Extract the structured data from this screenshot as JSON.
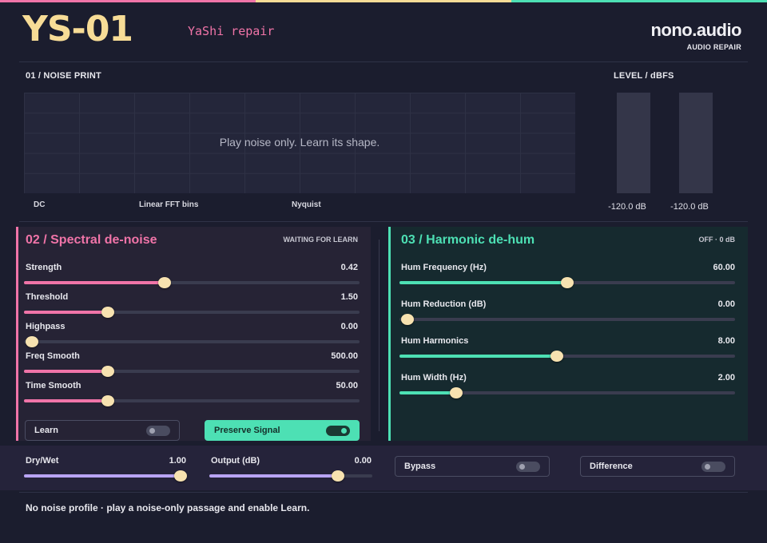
{
  "colors": {
    "background": "#1b1d2e",
    "pink": "#f074a8",
    "yellow": "#f7dc96",
    "teal": "#4de0b4",
    "lavender": "#b9a4f4",
    "thumb": "#f7e2b0"
  },
  "header": {
    "logo": "YS-01",
    "subtitle": "YaShi repair",
    "brand": "nono.audio",
    "brand_sub": "AUDIO REPAIR"
  },
  "noise_print": {
    "label": "01 / NOISE PRINT",
    "message": "Play noise only. Learn its shape.",
    "axis": [
      "DC",
      "Linear FFT bins",
      "Nyquist"
    ]
  },
  "level": {
    "label": "LEVEL / dBFS",
    "left": "-120.0 dB",
    "right": "-120.0 dB"
  },
  "denoise": {
    "title": "02 / Spectral de-noise",
    "status": "WAITING FOR LEARN",
    "params": [
      {
        "label": "Strength",
        "value": "0.42",
        "fraction": 0.42
      },
      {
        "label": "Threshold",
        "value": "1.50",
        "fraction": 0.25
      },
      {
        "label": "Highpass",
        "value": "0.00",
        "fraction": 0.0
      },
      {
        "label": "Freq Smooth",
        "value": "500.00",
        "fraction": 0.25
      },
      {
        "label": "Time Smooth",
        "value": "50.00",
        "fraction": 0.25
      }
    ],
    "learn_label": "Learn",
    "learn_on": false,
    "preserve_label": "Preserve Signal",
    "preserve_on": true
  },
  "dehum": {
    "title": "03 / Harmonic de-hum",
    "status": "OFF · 0 dB",
    "params": [
      {
        "label": "Hum Frequency (Hz)",
        "value": "60.00",
        "fraction": 0.5
      },
      {
        "label": "Hum Reduction (dB)",
        "value": "0.00",
        "fraction": 0.0
      },
      {
        "label": "Hum Harmonics",
        "value": "8.00",
        "fraction": 0.47
      },
      {
        "label": "Hum Width (Hz)",
        "value": "2.00",
        "fraction": 0.17
      }
    ]
  },
  "bottom": {
    "dry_wet_label": "Dry/Wet",
    "dry_wet_value": "1.00",
    "dry_wet_fraction": 0.96,
    "output_label": "Output (dB)",
    "output_value": "0.00",
    "output_fraction": 0.79,
    "bypass_label": "Bypass",
    "bypass_on": false,
    "difference_label": "Difference",
    "difference_on": false
  },
  "status_text": "No noise profile · play a noise-only passage and enable Learn."
}
